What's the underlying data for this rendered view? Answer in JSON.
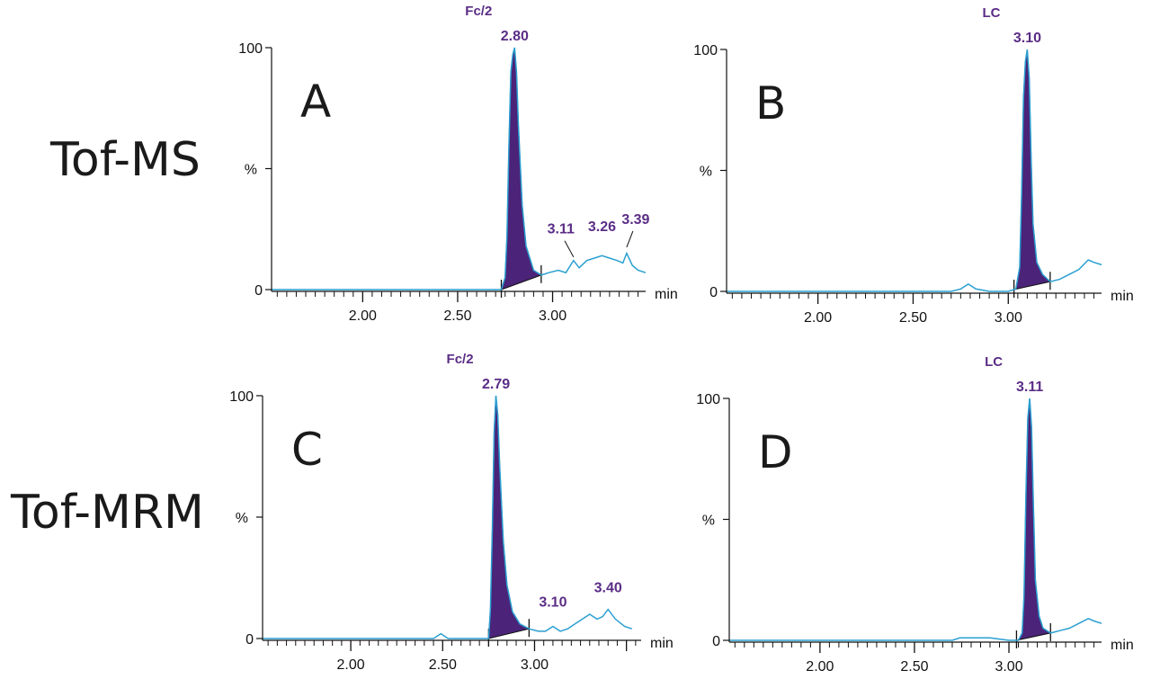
{
  "row_labels": [
    "Tof-MS",
    "Tof-MRM"
  ],
  "colors": {
    "trace": "#2a9fd1",
    "peak_fill": "#4b2378",
    "label": "#5b2d86",
    "axis": "#111111"
  },
  "chart_data": [
    {
      "type": "line",
      "panel_label": "A",
      "title": "Fc/2",
      "x_unit": "min",
      "y_label": "%",
      "xlim": [
        1.52,
        3.49
      ],
      "ylim": [
        0,
        100
      ],
      "x_ticks": [
        "2.00",
        "2.50",
        "3.00"
      ],
      "y_ticks": [
        "0",
        "100"
      ],
      "integrated_peak": {
        "start": 2.73,
        "end": 2.94,
        "apex": 2.8
      },
      "peak_labels": [
        {
          "text": "2.80",
          "x": 2.8,
          "y": 100
        },
        {
          "text": "3.11",
          "x": 3.11,
          "y": 12
        },
        {
          "text": "3.26",
          "x": 3.26,
          "y": 16
        },
        {
          "text": "3.39",
          "x": 3.39,
          "y": 16
        }
      ],
      "x": [
        1.52,
        2.7,
        2.73,
        2.75,
        2.76,
        2.77,
        2.78,
        2.79,
        2.8,
        2.81,
        2.82,
        2.84,
        2.86,
        2.9,
        2.94,
        2.98,
        3.03,
        3.07,
        3.11,
        3.14,
        3.18,
        3.22,
        3.26,
        3.3,
        3.34,
        3.37,
        3.39,
        3.42,
        3.45,
        3.49
      ],
      "y": [
        0,
        0,
        0,
        5,
        22,
        60,
        90,
        97,
        100,
        90,
        68,
        35,
        18,
        8,
        6,
        7,
        8,
        7,
        12,
        9,
        12,
        13,
        14,
        13,
        12,
        11,
        15,
        10,
        8,
        7
      ]
    },
    {
      "type": "line",
      "panel_label": "B",
      "title": "LC",
      "x_unit": "min",
      "y_label": "%",
      "xlim": [
        1.52,
        3.49
      ],
      "ylim": [
        0,
        100
      ],
      "x_ticks": [
        "2.00",
        "2.50",
        "3.00"
      ],
      "y_ticks": [
        "0",
        "100"
      ],
      "integrated_peak": {
        "start": 3.03,
        "end": 3.22,
        "apex": 3.1
      },
      "peak_labels": [
        {
          "text": "3.10",
          "x": 3.1,
          "y": 100
        }
      ],
      "x": [
        1.52,
        2.7,
        2.75,
        2.79,
        2.83,
        2.9,
        3.0,
        3.04,
        3.06,
        3.07,
        3.08,
        3.09,
        3.1,
        3.11,
        3.12,
        3.13,
        3.15,
        3.18,
        3.22,
        3.27,
        3.32,
        3.37,
        3.42,
        3.45,
        3.49
      ],
      "y": [
        0,
        0,
        1,
        3,
        1,
        0,
        0,
        1,
        10,
        40,
        80,
        95,
        100,
        88,
        55,
        28,
        12,
        7,
        4,
        5,
        7,
        9,
        13,
        12,
        11
      ]
    },
    {
      "type": "line",
      "panel_label": "C",
      "title": "Fc/2",
      "x_unit": "min",
      "y_label": "%",
      "xlim": [
        1.52,
        3.58
      ],
      "ylim": [
        0,
        100
      ],
      "x_ticks": [
        "2.00",
        "2.50",
        "3.00"
      ],
      "y_ticks": [
        "0",
        "100"
      ],
      "integrated_peak": {
        "start": 2.75,
        "end": 2.97,
        "apex": 2.79
      },
      "peak_labels": [
        {
          "text": "2.79",
          "x": 2.79,
          "y": 100
        },
        {
          "text": "3.10",
          "x": 3.1,
          "y": 5
        },
        {
          "text": "3.40",
          "x": 3.4,
          "y": 11
        }
      ],
      "x": [
        1.52,
        2.45,
        2.49,
        2.53,
        2.7,
        2.75,
        2.76,
        2.77,
        2.78,
        2.79,
        2.8,
        2.81,
        2.83,
        2.85,
        2.88,
        2.92,
        2.97,
        3.02,
        3.06,
        3.1,
        3.14,
        3.18,
        3.22,
        3.26,
        3.3,
        3.34,
        3.37,
        3.4,
        3.44,
        3.49,
        3.53
      ],
      "y": [
        0,
        0,
        2,
        0,
        0,
        0,
        12,
        45,
        85,
        100,
        92,
        72,
        40,
        22,
        11,
        6,
        4,
        3,
        3,
        5,
        3,
        4,
        6,
        8,
        10,
        8,
        9,
        12,
        8,
        5,
        4
      ]
    },
    {
      "type": "line",
      "panel_label": "D",
      "title": "LC",
      "x_unit": "min",
      "y_label": "%",
      "xlim": [
        1.52,
        3.49
      ],
      "ylim": [
        0,
        100
      ],
      "x_ticks": [
        "2.00",
        "2.50",
        "3.00"
      ],
      "y_ticks": [
        "0",
        "100"
      ],
      "integrated_peak": {
        "start": 3.04,
        "end": 3.22,
        "apex": 3.11
      },
      "peak_labels": [
        {
          "text": "3.11",
          "x": 3.11,
          "y": 100
        }
      ],
      "x": [
        1.52,
        2.7,
        2.74,
        2.9,
        3.0,
        3.05,
        3.07,
        3.08,
        3.09,
        3.1,
        3.11,
        3.12,
        3.13,
        3.14,
        3.16,
        3.18,
        3.22,
        3.27,
        3.32,
        3.37,
        3.42,
        3.45,
        3.49
      ],
      "y": [
        0,
        0,
        1,
        1,
        0,
        0,
        3,
        18,
        60,
        92,
        100,
        88,
        55,
        25,
        10,
        5,
        3,
        4,
        5,
        7,
        9,
        8,
        7
      ]
    }
  ]
}
